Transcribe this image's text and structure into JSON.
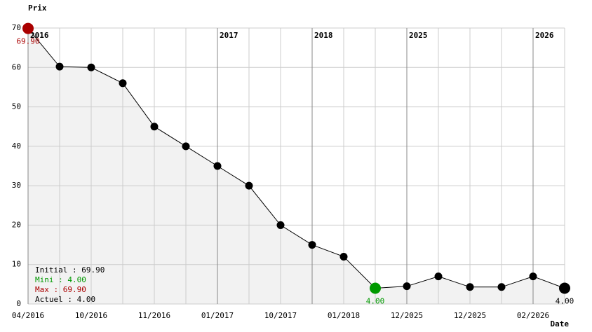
{
  "chart_data": {
    "type": "line",
    "y_label": "Prix",
    "x_label": "Date",
    "categories": [
      "04/2016",
      null,
      "10/2016",
      null,
      "11/2016",
      null,
      "01/2017",
      null,
      "10/2017",
      null,
      "01/2018",
      null,
      "12/2025",
      null,
      "12/2025",
      null,
      "02/2026",
      null
    ],
    "values": [
      69.9,
      60.2,
      60,
      56,
      45,
      40,
      35,
      30,
      20,
      15,
      12,
      4,
      4.5,
      7,
      4.3,
      4.3,
      7,
      4
    ],
    "value_labels": [
      "69.90",
      null,
      null,
      null,
      null,
      null,
      null,
      null,
      null,
      null,
      null,
      "4.00",
      null,
      null,
      null,
      null,
      null,
      "4.00"
    ],
    "year_markers": [
      {
        "label": "2016",
        "index": 0
      },
      {
        "label": "2017",
        "index": 6
      },
      {
        "label": "2018",
        "index": 9
      },
      {
        "label": "2025",
        "index": 12
      },
      {
        "label": "2026",
        "index": 16
      }
    ],
    "ylim": [
      0,
      70
    ],
    "yticks": [
      0,
      10,
      20,
      30,
      40,
      50,
      60,
      70
    ],
    "grid": true,
    "color": "#000000",
    "max_color": "#aa0000",
    "min_color": "#009900",
    "area_color": "#f2f2f2",
    "legend": [
      {
        "text": "Initial : 69.90",
        "color": "#000000"
      },
      {
        "text": "Mini : 4.00",
        "color": "#009900"
      },
      {
        "text": "Max : 69.90",
        "color": "#aa0000"
      },
      {
        "text": "Actuel : 4.00",
        "color": "#000000"
      }
    ]
  }
}
